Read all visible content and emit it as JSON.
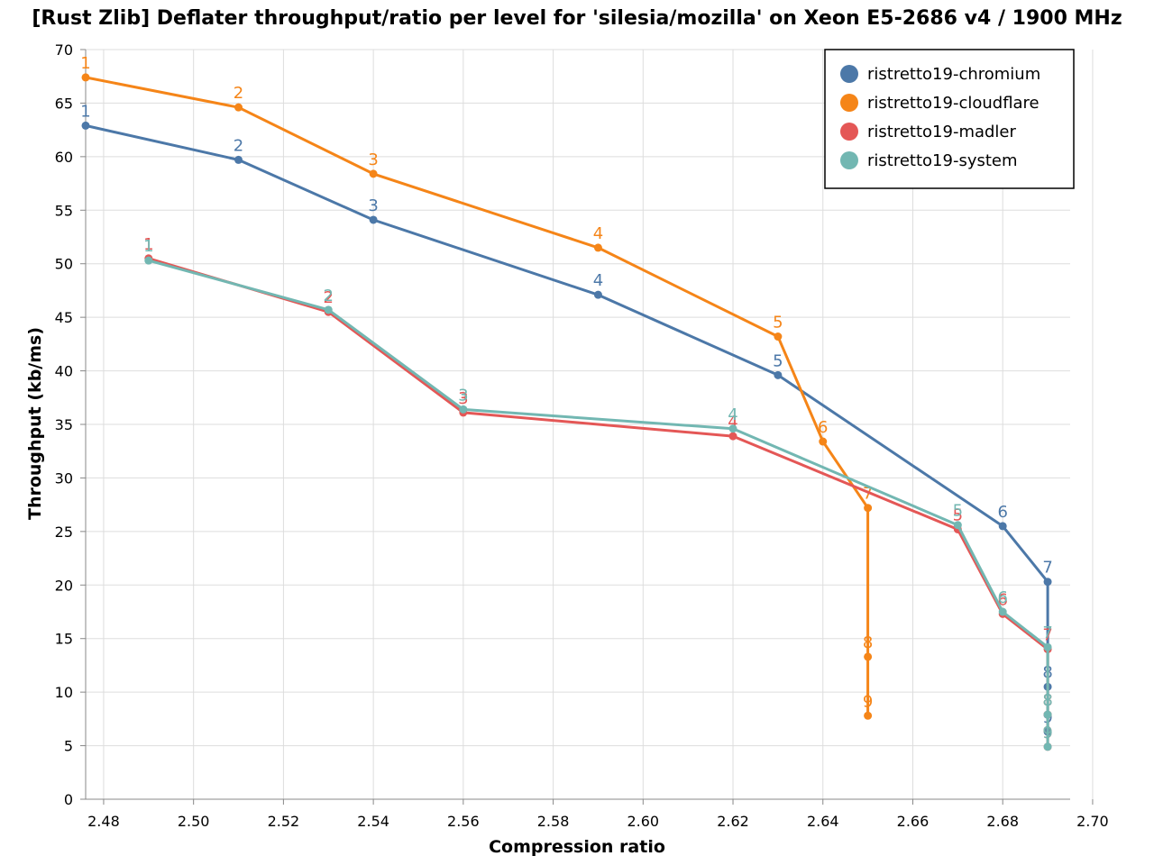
{
  "chart_data": {
    "type": "line",
    "title": "[Rust Zlib] Deflater throughput/ratio per level for 'silesia/mozilla' on Xeon E5-2686 v4 / 1900 MHz",
    "xlabel": "Compression ratio",
    "ylabel": "Throughput (kb/ms)",
    "xlim": [
      2.476,
      2.695
    ],
    "ylim": [
      0,
      70
    ],
    "x_ticks": [
      "2.48",
      "2.50",
      "2.52",
      "2.54",
      "2.56",
      "2.58",
      "2.60",
      "2.62",
      "2.64",
      "2.66",
      "2.68",
      "2.70"
    ],
    "y_ticks": [
      "0",
      "5",
      "10",
      "15",
      "20",
      "25",
      "30",
      "35",
      "40",
      "45",
      "50",
      "55",
      "60",
      "65",
      "70"
    ],
    "grid": true,
    "legend_position": "top-right",
    "series": [
      {
        "name": "ristretto19-chromium",
        "color": "#4c78a8",
        "points": [
          {
            "label": "1",
            "x": 2.476,
            "y": 62.9
          },
          {
            "label": "2",
            "x": 2.51,
            "y": 59.7
          },
          {
            "label": "3",
            "x": 2.54,
            "y": 54.1
          },
          {
            "label": "4",
            "x": 2.59,
            "y": 47.1
          },
          {
            "label": "5",
            "x": 2.63,
            "y": 39.6
          },
          {
            "label": "6",
            "x": 2.68,
            "y": 25.5
          },
          {
            "label": "7",
            "x": 2.69,
            "y": 20.3
          },
          {
            "label": "8",
            "x": 2.69,
            "y": 10.5
          },
          {
            "label": "9",
            "x": 2.69,
            "y": 6.3
          }
        ]
      },
      {
        "name": "ristretto19-cloudflare",
        "color": "#f58518",
        "points": [
          {
            "label": "1",
            "x": 2.476,
            "y": 67.4
          },
          {
            "label": "2",
            "x": 2.51,
            "y": 64.6
          },
          {
            "label": "3",
            "x": 2.54,
            "y": 58.4
          },
          {
            "label": "4",
            "x": 2.59,
            "y": 51.5
          },
          {
            "label": "5",
            "x": 2.63,
            "y": 43.2
          },
          {
            "label": "6",
            "x": 2.64,
            "y": 33.4
          },
          {
            "label": "7",
            "x": 2.65,
            "y": 27.2
          },
          {
            "label": "8",
            "x": 2.65,
            "y": 13.3
          },
          {
            "label": "9",
            "x": 2.65,
            "y": 7.8
          }
        ]
      },
      {
        "name": "ristretto19-madler",
        "color": "#e45756",
        "points": [
          {
            "label": "1",
            "x": 2.49,
            "y": 50.5
          },
          {
            "label": "2",
            "x": 2.53,
            "y": 45.5
          },
          {
            "label": "3",
            "x": 2.56,
            "y": 36.1
          },
          {
            "label": "4",
            "x": 2.62,
            "y": 33.9
          },
          {
            "label": "5",
            "x": 2.67,
            "y": 25.2
          },
          {
            "label": "6",
            "x": 2.68,
            "y": 17.3
          },
          {
            "label": "7",
            "x": 2.69,
            "y": 14.0
          },
          {
            "label": "8",
            "x": 2.69,
            "y": 7.9
          },
          {
            "label": "9",
            "x": 2.69,
            "y": 4.9
          }
        ]
      },
      {
        "name": "ristretto19-system",
        "color": "#72b7b2",
        "points": [
          {
            "label": "1",
            "x": 2.49,
            "y": 50.3
          },
          {
            "label": "2",
            "x": 2.53,
            "y": 45.7
          },
          {
            "label": "3",
            "x": 2.56,
            "y": 36.4
          },
          {
            "label": "4",
            "x": 2.62,
            "y": 34.6
          },
          {
            "label": "5",
            "x": 2.67,
            "y": 25.6
          },
          {
            "label": "6",
            "x": 2.68,
            "y": 17.5
          },
          {
            "label": "7",
            "x": 2.69,
            "y": 14.2
          },
          {
            "label": "8",
            "x": 2.69,
            "y": 7.9
          },
          {
            "label": "9",
            "x": 2.69,
            "y": 4.9
          }
        ]
      }
    ]
  }
}
